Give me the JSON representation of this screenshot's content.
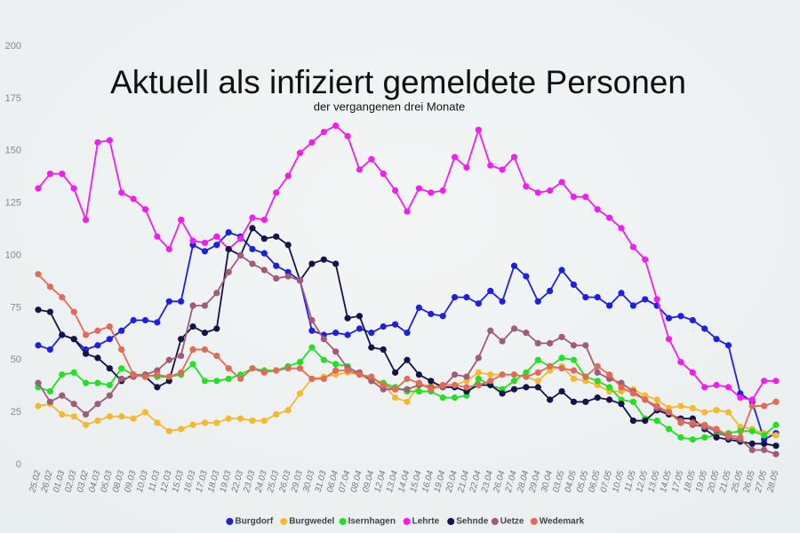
{
  "chart_data": {
    "type": "line",
    "title": "Aktuell als infiziert gemeldete Personen",
    "subtitle": "der vergangenen drei Monate",
    "categories": [
      "25.02",
      "26.02",
      "01.03",
      "02.03",
      "03.02",
      "04.03",
      "05.03",
      "08.03",
      "09.03",
      "10.03",
      "11.03",
      "12.03",
      "15.03",
      "16.03",
      "17.03",
      "18.03",
      "19.03",
      "22.03",
      "23.03",
      "24.03",
      "25.03",
      "26.03",
      "29.03",
      "30.03",
      "31.03",
      "06.04",
      "07.04",
      "08.04",
      "09.04",
      "12.04",
      "13.04",
      "14.04",
      "15.04",
      "16.04",
      "19.04",
      "20.04",
      "21.04",
      "22.04",
      "23.04",
      "26.04",
      "27.04",
      "28.04",
      "29.04",
      "30.04",
      "03.05",
      "04.05",
      "05.05",
      "06.05",
      "07.05",
      "10.05",
      "11.05",
      "12.05",
      "13.05",
      "14.05",
      "17.05",
      "18.05",
      "19.05",
      "20.05",
      "21.05",
      "25.05",
      "26.05",
      "27.05",
      "28.05"
    ],
    "ylim": [
      0,
      200
    ],
    "yticks": [
      0,
      25,
      50,
      75,
      100,
      125,
      150,
      175,
      200
    ],
    "grid": false,
    "legend": "bottom",
    "series": [
      {
        "name": "Burgdorf",
        "color": "#1f1fe0",
        "values": [
          57,
          55,
          62,
          60,
          55,
          57,
          60,
          64,
          69,
          69,
          68,
          78,
          78,
          105,
          102,
          105,
          111,
          109,
          103,
          101,
          95,
          92,
          88,
          64,
          62,
          63,
          62,
          65,
          63,
          66,
          67,
          63,
          75,
          72,
          71,
          80,
          80,
          77,
          83,
          78,
          95,
          90,
          78,
          83,
          93,
          86,
          80,
          80,
          76,
          82,
          76,
          79,
          76,
          70,
          71,
          69,
          65,
          60,
          57,
          34,
          30,
          12,
          15
        ]
      },
      {
        "name": "Burgwedel",
        "color": "#f5b82e",
        "values": [
          28,
          29,
          24,
          23,
          19,
          21,
          23,
          23,
          22,
          25,
          20,
          16,
          17,
          19,
          20,
          20,
          22,
          22,
          21,
          21,
          24,
          26,
          34,
          41,
          42,
          43,
          44,
          43,
          40,
          38,
          32,
          30,
          38,
          38,
          38,
          38,
          40,
          44,
          43,
          43,
          43,
          42,
          40,
          45,
          47,
          41,
          40,
          38,
          35,
          35,
          36,
          33,
          31,
          27,
          28,
          27,
          25,
          26,
          25,
          18,
          17,
          15,
          14
        ]
      },
      {
        "name": "Isernhagen",
        "color": "#22e022",
        "values": [
          37,
          35,
          43,
          44,
          39,
          39,
          38,
          46,
          43,
          43,
          42,
          42,
          43,
          48,
          40,
          40,
          41,
          43,
          46,
          45,
          45,
          47,
          49,
          56,
          50,
          48,
          47,
          43,
          41,
          39,
          37,
          35,
          35,
          35,
          32,
          32,
          33,
          41,
          38,
          36,
          40,
          44,
          50,
          47,
          51,
          50,
          42,
          40,
          37,
          31,
          30,
          22,
          21,
          17,
          13,
          12,
          13,
          14,
          15,
          16,
          16,
          14,
          19
        ]
      },
      {
        "name": "Lehrte",
        "color": "#f01ef0",
        "values": [
          132,
          139,
          139,
          132,
          117,
          154,
          155,
          130,
          127,
          122,
          109,
          103,
          117,
          107,
          106,
          109,
          103,
          108,
          118,
          117,
          130,
          138,
          149,
          154,
          159,
          162,
          157,
          141,
          146,
          139,
          131,
          121,
          132,
          130,
          131,
          147,
          142,
          160,
          143,
          141,
          147,
          133,
          130,
          131,
          135,
          128,
          128,
          122,
          118,
          113,
          104,
          98,
          79,
          60,
          49,
          44,
          37,
          38,
          37,
          32,
          31,
          40,
          40
        ]
      },
      {
        "name": "Sehnde",
        "color": "#14144a",
        "values": [
          74,
          73,
          62,
          60,
          53,
          51,
          46,
          40,
          43,
          42,
          37,
          40,
          60,
          66,
          63,
          65,
          103,
          100,
          113,
          108,
          109,
          105,
          88,
          96,
          98,
          96,
          70,
          71,
          56,
          55,
          44,
          50,
          43,
          40,
          37,
          37,
          35,
          38,
          38,
          34,
          36,
          37,
          37,
          31,
          35,
          30,
          30,
          32,
          31,
          29,
          21,
          21,
          26,
          24,
          22,
          22,
          17,
          13,
          12,
          11,
          10,
          10,
          9
        ]
      },
      {
        "name": "Uetze",
        "color": "#a05a7a",
        "values": [
          39,
          30,
          33,
          29,
          24,
          29,
          33,
          41,
          42,
          43,
          45,
          50,
          52,
          76,
          76,
          82,
          92,
          100,
          96,
          93,
          89,
          90,
          88,
          69,
          60,
          54,
          46,
          44,
          40,
          36,
          36,
          36,
          38,
          37,
          37,
          43,
          42,
          51,
          64,
          59,
          65,
          63,
          58,
          58,
          61,
          57,
          57,
          44,
          41,
          39,
          35,
          31,
          27,
          25,
          21,
          19,
          18,
          16,
          13,
          12,
          7,
          7,
          5
        ]
      },
      {
        "name": "Wedemark",
        "color": "#e06b5a",
        "values": [
          91,
          85,
          80,
          73,
          62,
          64,
          66,
          55,
          43,
          42,
          43,
          42,
          44,
          55,
          55,
          52,
          46,
          41,
          46,
          44,
          45,
          46,
          46,
          41,
          41,
          45,
          45,
          43,
          42,
          38,
          36,
          41,
          39,
          36,
          38,
          38,
          37,
          38,
          40,
          43,
          43,
          42,
          44,
          47,
          46,
          45,
          42,
          47,
          43,
          37,
          34,
          31,
          28,
          25,
          20,
          20,
          19,
          17,
          14,
          13,
          28,
          28,
          30
        ]
      }
    ]
  }
}
